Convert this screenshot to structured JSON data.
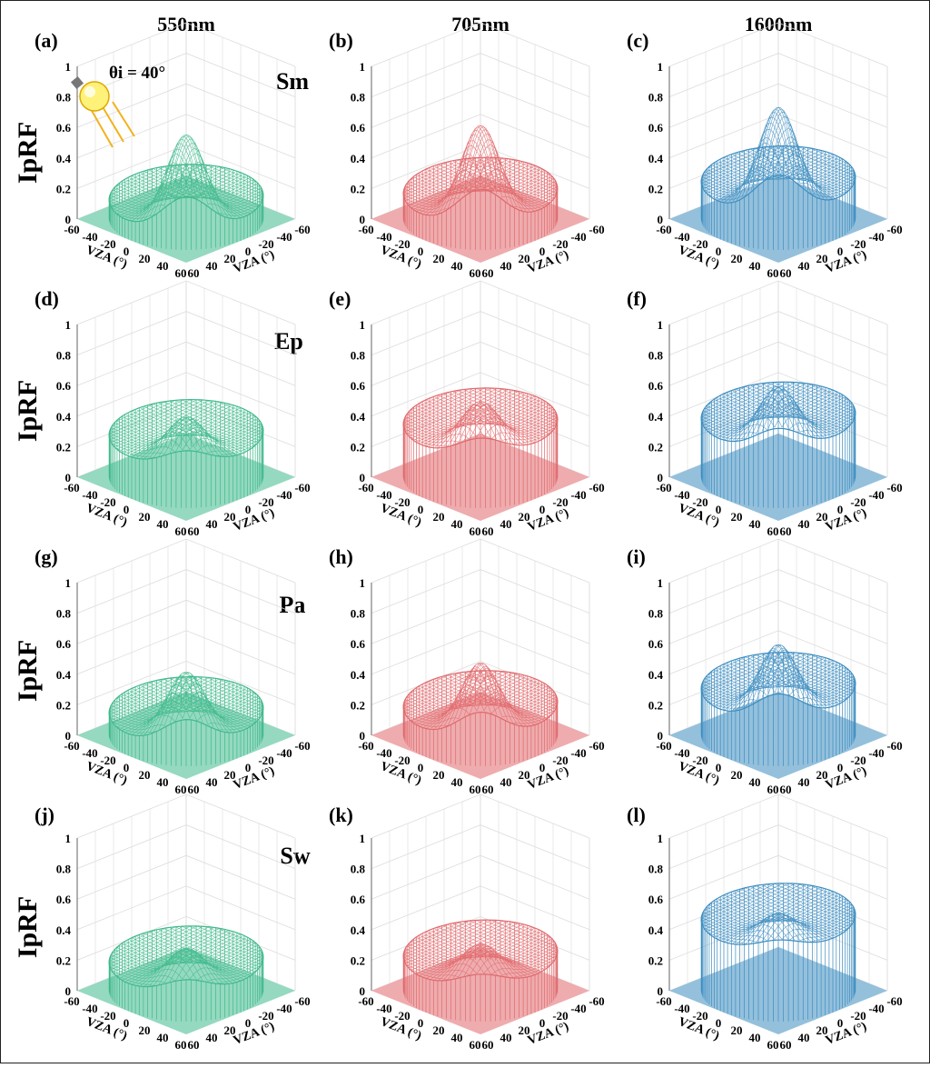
{
  "figure": {
    "column_headers": [
      "550nm",
      "705nm",
      "1600nm"
    ],
    "row_labels": [
      "Sm",
      "Ep",
      "Pa",
      "Sw"
    ],
    "z_axis_label": "IpRF",
    "xy_axis_label": "VZA (°)",
    "incidence_label": "θi = 40°",
    "colors": {
      "550nm": "#3fb98c",
      "705nm": "#e0686c",
      "1600nm": "#3d8dc0"
    }
  },
  "chart_data": [
    {
      "type": "surface",
      "panel_label": "(a)",
      "wavelength": "550nm",
      "surface": "Sm",
      "zlabel": "IpRF",
      "xlabel": "VZA (°)",
      "ylabel": "VZA (°)",
      "zlim": [
        0,
        1
      ],
      "xlim": [
        -60,
        60
      ],
      "ylim": [
        -60,
        60
      ],
      "zticks": [
        0,
        0.2,
        0.4,
        0.6,
        0.8,
        1
      ],
      "xticks": [
        -60,
        -40,
        -20,
        0,
        20,
        40,
        60
      ],
      "yticks": [
        -60,
        -40,
        -20,
        0,
        20,
        40,
        60
      ],
      "grid": true,
      "base_level": 0.1,
      "backward_level": 0.17,
      "hotspot_peak": 0.66,
      "color": "#3fb98c"
    },
    {
      "type": "surface",
      "panel_label": "(b)",
      "wavelength": "705nm",
      "surface": "Sm",
      "zlabel": "IpRF",
      "xlabel": "VZA (°)",
      "ylabel": "VZA (°)",
      "zlim": [
        0,
        1
      ],
      "xlim": [
        -60,
        60
      ],
      "ylim": [
        -60,
        60
      ],
      "zticks": [
        0,
        0.2,
        0.4,
        0.6,
        0.8,
        1
      ],
      "xticks": [
        -60,
        -40,
        -20,
        0,
        20,
        40,
        60
      ],
      "yticks": [
        -60,
        -40,
        -20,
        0,
        20,
        40,
        60
      ],
      "grid": true,
      "base_level": 0.14,
      "backward_level": 0.22,
      "hotspot_peak": 0.72,
      "color": "#e0686c"
    },
    {
      "type": "surface",
      "panel_label": "(c)",
      "wavelength": "1600nm",
      "surface": "Sm",
      "zlabel": "IpRF",
      "xlabel": "VZA (°)",
      "ylabel": "VZA (°)",
      "zlim": [
        0,
        1
      ],
      "xlim": [
        -60,
        60
      ],
      "ylim": [
        -60,
        60
      ],
      "zticks": [
        0,
        0.2,
        0.4,
        0.6,
        0.8,
        1
      ],
      "xticks": [
        -60,
        -40,
        -20,
        0,
        20,
        40,
        60
      ],
      "yticks": [
        -60,
        -40,
        -20,
        0,
        20,
        40,
        60
      ],
      "grid": true,
      "base_level": 0.22,
      "backward_level": 0.29,
      "hotspot_peak": 0.84,
      "color": "#3d8dc0"
    },
    {
      "type": "surface",
      "panel_label": "(d)",
      "wavelength": "550nm",
      "surface": "Ep",
      "zlabel": "IpRF",
      "xlabel": "VZA (°)",
      "ylabel": "VZA (°)",
      "zlim": [
        0,
        1
      ],
      "xlim": [
        -60,
        60
      ],
      "ylim": [
        -60,
        60
      ],
      "zticks": [
        0,
        0.2,
        0.4,
        0.6,
        0.8,
        1
      ],
      "xticks": [
        -60,
        -40,
        -20,
        0,
        20,
        40,
        60
      ],
      "yticks": [
        -60,
        -40,
        -20,
        0,
        20,
        40,
        60
      ],
      "grid": true,
      "base_level": 0.25,
      "backward_level": 0.32,
      "hotspot_peak": 0.5,
      "color": "#3fb98c"
    },
    {
      "type": "surface",
      "panel_label": "(e)",
      "wavelength": "705nm",
      "surface": "Ep",
      "zlabel": "IpRF",
      "xlabel": "VZA (°)",
      "ylabel": "VZA (°)",
      "zlim": [
        0,
        1
      ],
      "xlim": [
        -60,
        60
      ],
      "ylim": [
        -60,
        60
      ],
      "zticks": [
        0,
        0.2,
        0.4,
        0.6,
        0.8,
        1
      ],
      "xticks": [
        -60,
        -40,
        -20,
        0,
        20,
        40,
        60
      ],
      "yticks": [
        -60,
        -40,
        -20,
        0,
        20,
        40,
        60
      ],
      "grid": true,
      "base_level": 0.32,
      "backward_level": 0.4,
      "hotspot_peak": 0.6,
      "color": "#e0686c"
    },
    {
      "type": "surface",
      "panel_label": "(f)",
      "wavelength": "1600nm",
      "surface": "Ep",
      "zlabel": "IpRF",
      "xlabel": "VZA (°)",
      "ylabel": "VZA (°)",
      "zlim": [
        0,
        1
      ],
      "xlim": [
        -60,
        60
      ],
      "ylim": [
        -60,
        60
      ],
      "zticks": [
        0,
        0.2,
        0.4,
        0.6,
        0.8,
        1
      ],
      "xticks": [
        -60,
        -40,
        -20,
        0,
        20,
        40,
        60
      ],
      "yticks": [
        -60,
        -40,
        -20,
        0,
        20,
        40,
        60
      ],
      "grid": true,
      "base_level": 0.36,
      "backward_level": 0.44,
      "hotspot_peak": 0.7,
      "color": "#3d8dc0"
    },
    {
      "type": "surface",
      "panel_label": "(g)",
      "wavelength": "550nm",
      "surface": "Pa",
      "zlabel": "IpRF",
      "xlabel": "VZA (°)",
      "ylabel": "VZA (°)",
      "zlim": [
        0,
        1
      ],
      "xlim": [
        -60,
        60
      ],
      "ylim": [
        -60,
        60
      ],
      "zticks": [
        0,
        0.2,
        0.4,
        0.6,
        0.8,
        1
      ],
      "xticks": [
        -60,
        -40,
        -20,
        0,
        20,
        40,
        60
      ],
      "yticks": [
        -60,
        -40,
        -20,
        0,
        20,
        40,
        60
      ],
      "grid": true,
      "base_level": 0.12,
      "backward_level": 0.2,
      "hotspot_peak": 0.52,
      "color": "#3fb98c"
    },
    {
      "type": "surface",
      "panel_label": "(h)",
      "wavelength": "705nm",
      "surface": "Pa",
      "zlabel": "IpRF",
      "xlabel": "VZA (°)",
      "ylabel": "VZA (°)",
      "zlim": [
        0,
        1
      ],
      "xlim": [
        -60,
        60
      ],
      "ylim": [
        -60,
        60
      ],
      "zticks": [
        0,
        0.2,
        0.4,
        0.6,
        0.8,
        1
      ],
      "xticks": [
        -60,
        -40,
        -20,
        0,
        20,
        40,
        60
      ],
      "yticks": [
        -60,
        -40,
        -20,
        0,
        20,
        40,
        60
      ],
      "grid": true,
      "base_level": 0.16,
      "backward_level": 0.24,
      "hotspot_peak": 0.58,
      "color": "#e0686c"
    },
    {
      "type": "surface",
      "panel_label": "(i)",
      "wavelength": "1600nm",
      "surface": "Pa",
      "zlabel": "IpRF",
      "xlabel": "VZA (°)",
      "ylabel": "VZA (°)",
      "zlim": [
        0,
        1
      ],
      "xlim": [
        -60,
        60
      ],
      "ylim": [
        -60,
        60
      ],
      "zticks": [
        0,
        0.2,
        0.4,
        0.6,
        0.8,
        1
      ],
      "xticks": [
        -60,
        -40,
        -20,
        0,
        20,
        40,
        60
      ],
      "yticks": [
        -60,
        -40,
        -20,
        0,
        20,
        40,
        60
      ],
      "grid": true,
      "base_level": 0.28,
      "backward_level": 0.36,
      "hotspot_peak": 0.7,
      "color": "#3d8dc0"
    },
    {
      "type": "surface",
      "panel_label": "(j)",
      "wavelength": "550nm",
      "surface": "Sw",
      "zlabel": "IpRF",
      "xlabel": "VZA (°)",
      "ylabel": "VZA (°)",
      "zlim": [
        0,
        1
      ],
      "xlim": [
        -60,
        60
      ],
      "ylim": [
        -60,
        60
      ],
      "zticks": [
        0,
        0.2,
        0.4,
        0.6,
        0.8,
        1
      ],
      "xticks": [
        -60,
        -40,
        -20,
        0,
        20,
        40,
        60
      ],
      "yticks": [
        -60,
        -40,
        -20,
        0,
        20,
        40,
        60
      ],
      "grid": true,
      "base_level": 0.16,
      "backward_level": 0.24,
      "hotspot_peak": 0.38,
      "color": "#3fb98c"
    },
    {
      "type": "surface",
      "panel_label": "(k)",
      "wavelength": "705nm",
      "surface": "Sw",
      "zlabel": "IpRF",
      "xlabel": "VZA (°)",
      "ylabel": "VZA (°)",
      "zlim": [
        0,
        1
      ],
      "xlim": [
        -60,
        60
      ],
      "ylim": [
        -60,
        60
      ],
      "zticks": [
        0,
        0.2,
        0.4,
        0.6,
        0.8,
        1
      ],
      "xticks": [
        -60,
        -40,
        -20,
        0,
        20,
        40,
        60
      ],
      "yticks": [
        -60,
        -40,
        -20,
        0,
        20,
        40,
        60
      ],
      "grid": true,
      "base_level": 0.2,
      "backward_level": 0.28,
      "hotspot_peak": 0.41,
      "color": "#e0686c"
    },
    {
      "type": "surface",
      "panel_label": "(l)",
      "wavelength": "1600nm",
      "surface": "Sw",
      "zlabel": "IpRF",
      "xlabel": "VZA (°)",
      "ylabel": "VZA (°)",
      "zlim": [
        0,
        1
      ],
      "xlim": [
        -60,
        60
      ],
      "ylim": [
        -60,
        60
      ],
      "zticks": [
        0,
        0.2,
        0.4,
        0.6,
        0.8,
        1
      ],
      "xticks": [
        -60,
        -40,
        -20,
        0,
        20,
        40,
        60
      ],
      "yticks": [
        -60,
        -40,
        -20,
        0,
        20,
        40,
        60
      ],
      "grid": true,
      "base_level": 0.44,
      "backward_level": 0.52,
      "hotspot_peak": 0.61,
      "color": "#3d8dc0"
    }
  ]
}
